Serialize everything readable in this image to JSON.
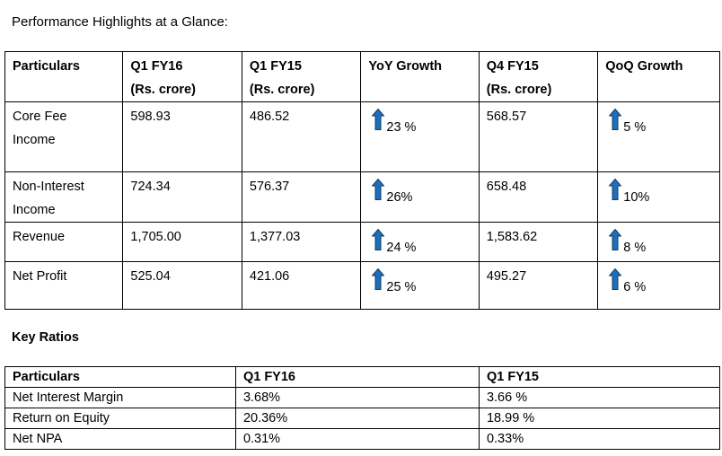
{
  "heading": "Performance Highlights at a Glance:",
  "highlights": {
    "headers": [
      [
        "Particulars",
        ""
      ],
      [
        "Q1 FY16",
        "(Rs. crore)"
      ],
      [
        "Q1 FY15",
        "(Rs. crore)"
      ],
      [
        "YoY Growth",
        ""
      ],
      [
        "Q4 FY15",
        "(Rs. crore)"
      ],
      [
        "QoQ Growth",
        ""
      ]
    ],
    "rows": [
      {
        "particular": [
          "Core Fee",
          "Income"
        ],
        "q1fy16": "598.93",
        "q1fy15": "486.52",
        "yoy": "23 %",
        "q4fy15": "568.57",
        "qoq": "5 %"
      },
      {
        "particular": [
          "Non-Interest",
          "Income"
        ],
        "q1fy16": "724.34",
        "q1fy15": "576.37",
        "yoy": "26%",
        "q4fy15": "658.48",
        "qoq": "10%"
      },
      {
        "particular": [
          "Revenue",
          ""
        ],
        "q1fy16": "1,705.00",
        "q1fy15": "1,377.03",
        "yoy": "24 %",
        "q4fy15": "1,583.62",
        "qoq": "8 %"
      },
      {
        "particular": [
          "Net Profit",
          ""
        ],
        "q1fy16": "525.04",
        "q1fy15": "421.06",
        "yoy": "25 %",
        "q4fy15": "495.27",
        "qoq": "6 %"
      }
    ],
    "arrow_color": "#1f6fb8",
    "arrow_icon": "up-arrow-icon"
  },
  "key_ratios": {
    "title": "Key Ratios",
    "headers": [
      "Particulars",
      "Q1 FY16",
      "Q1 FY15"
    ],
    "rows": [
      [
        "Net Interest Margin",
        "3.68%",
        "3.66 %"
      ],
      [
        "Return on Equity",
        "20.36%",
        "18.99 %"
      ],
      [
        "Net NPA",
        "0.31%",
        "0.33%"
      ]
    ]
  }
}
